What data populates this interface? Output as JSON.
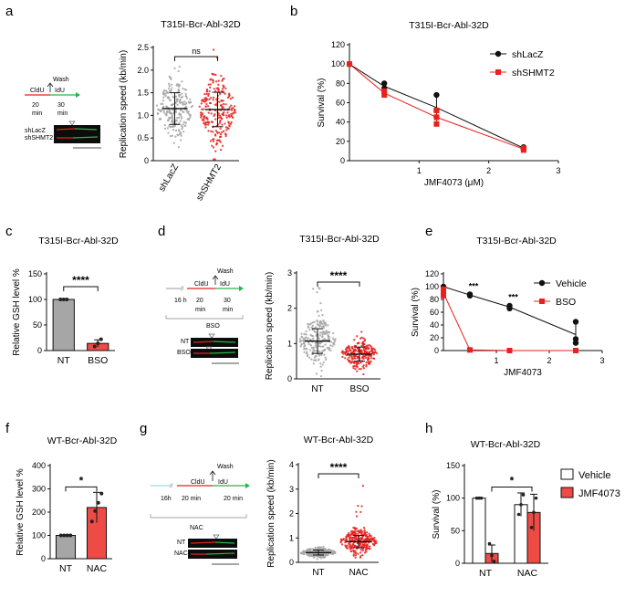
{
  "panel_letters": [
    "a",
    "b",
    "c",
    "d",
    "e",
    "f",
    "g",
    "h"
  ],
  "colors": {
    "red": "#e8211d",
    "red_fill": "#ee4a46",
    "grey": "#a6a6a6",
    "green": "#2bb34a",
    "black": "#111111"
  },
  "schematics": {
    "a": {
      "wash": "Wash",
      "cldu": "CldU",
      "idu": "IdU",
      "t1": "20",
      "t1u": "min",
      "t2": "30",
      "t2u": "min",
      "rows": [
        "shLacZ",
        "shSHMT2"
      ]
    },
    "d": {
      "wash": "Wash",
      "cldu": "CldU",
      "idu": "IdU",
      "t0": "16 h",
      "t1": "20",
      "t1u": "min",
      "t2": "30",
      "t2u": "min",
      "bracket": "BSO",
      "rows": [
        "NT",
        "BSO"
      ]
    },
    "g": {
      "wash": "Wash",
      "cldu": "CldU",
      "idu": "IdU",
      "t0": "16h",
      "t1": "20 min",
      "t2": "20 min",
      "bracket": "NAC",
      "rows": [
        "NT",
        "NAC"
      ]
    }
  },
  "chart_data": [
    {
      "id": "a",
      "type": "scatter",
      "title": "T315I-Bcr-Abl-32D",
      "ylabel": "Replication speed (kb/min)",
      "categories": [
        "shLacZ",
        "shSHMT2"
      ],
      "ylim": [
        0,
        2.5
      ],
      "yticks": [
        "0",
        "0.5",
        "1.0",
        "1.5",
        "2.0",
        "2.5"
      ],
      "means": [
        1.15,
        1.13
      ],
      "sd": [
        0.35,
        0.38
      ],
      "n": [
        230,
        230
      ],
      "colors": [
        "#a6a6a6",
        "#e8211d"
      ],
      "significance": "ns"
    },
    {
      "id": "b",
      "type": "line",
      "title": "T315I-Bcr-Abl-32D",
      "ylabel": "Survival (%)",
      "xlabel": "JMF4073 (μM)",
      "xlim": [
        0,
        3
      ],
      "ylim": [
        0,
        120
      ],
      "xticks": [
        "1",
        "2",
        "3"
      ],
      "yticks": [
        "0",
        "20",
        "40",
        "60",
        "80",
        "100",
        "120"
      ],
      "legend_position": "top-right",
      "series": [
        {
          "name": "shLacZ",
          "marker": "circle",
          "color": "#111111",
          "x": [
            0,
            0.5,
            1.25,
            2.5
          ],
          "y": [
            100,
            77,
            55,
            13
          ],
          "points": [
            [
              0,
              100
            ],
            [
              0.5,
              80
            ],
            [
              0.5,
              75
            ],
            [
              1.25,
              68
            ],
            [
              1.25,
              52
            ],
            [
              1.25,
              45
            ],
            [
              2.5,
              14
            ],
            [
              2.5,
              12
            ]
          ],
          "err": [
            0,
            3,
            11,
            1
          ]
        },
        {
          "name": "shSHMT2",
          "marker": "square",
          "color": "#e8211d",
          "x": [
            0,
            0.5,
            1.25,
            2.5
          ],
          "y": [
            100,
            70,
            45,
            12
          ],
          "points": [
            [
              0,
              100
            ],
            [
              0.5,
              72
            ],
            [
              0.5,
              68
            ],
            [
              1.25,
              52
            ],
            [
              1.25,
              45
            ],
            [
              1.25,
              38
            ],
            [
              2.5,
              13
            ],
            [
              2.5,
              11
            ]
          ],
          "err": [
            0,
            2,
            6,
            1
          ]
        }
      ]
    },
    {
      "id": "c",
      "type": "bar",
      "title": "T315I-Bcr-Abl-32D",
      "ylabel": "Relative GSH level %",
      "categories": [
        "NT",
        "BSO"
      ],
      "values": [
        100,
        14
      ],
      "err": [
        0,
        7
      ],
      "points": [
        [
          100,
          100,
          100
        ],
        [
          8,
          14,
          22
        ]
      ],
      "ylim": [
        0,
        150
      ],
      "yticks": [
        "0",
        "50",
        "100",
        "150"
      ],
      "colors": [
        "#a6a6a6",
        "#ee4a46"
      ],
      "significance": "****"
    },
    {
      "id": "d",
      "type": "scatter",
      "title": "T315I-Bcr-Abl-32D",
      "ylabel": "Replication speed (kb/min)",
      "categories": [
        "NT",
        "BSO"
      ],
      "ylim": [
        0,
        3
      ],
      "yticks": [
        "0",
        "1",
        "2",
        "3"
      ],
      "means": [
        1.07,
        0.7
      ],
      "sd": [
        0.35,
        0.2
      ],
      "n": [
        220,
        220
      ],
      "colors": [
        "#a6a6a6",
        "#e8211d"
      ],
      "significance": "****"
    },
    {
      "id": "e",
      "type": "line",
      "title": "T315I-Bcr-Abl-32D",
      "ylabel": "Survival (%)",
      "xlabel": "JMF4073",
      "xlim": [
        0,
        3
      ],
      "ylim": [
        0,
        120
      ],
      "xticks": [
        "1",
        "2",
        "3"
      ],
      "yticks": [
        "0",
        "20",
        "40",
        "60",
        "80",
        "100",
        "120"
      ],
      "legend_position": "top-right",
      "annotations": [
        {
          "x": 0.5,
          "text": "***"
        },
        {
          "x": 1.25,
          "text": "***"
        }
      ],
      "series": [
        {
          "name": "Vehicle",
          "marker": "circle",
          "color": "#111111",
          "x": [
            0,
            0.5,
            1.25,
            2.5
          ],
          "y": [
            100,
            87,
            68,
            25
          ],
          "points": [
            [
              0,
              100
            ],
            [
              0.5,
              88
            ],
            [
              0.5,
              86
            ],
            [
              1.25,
              70
            ],
            [
              1.25,
              66
            ],
            [
              2.5,
              45
            ],
            [
              2.5,
              18
            ],
            [
              2.5,
              12
            ]
          ],
          "err": [
            0,
            1,
            3,
            17
          ]
        },
        {
          "name": "BSO",
          "marker": "square",
          "color": "#e8211d",
          "x": [
            0,
            0.5,
            1.25,
            2.5
          ],
          "y": [
            90,
            1,
            0,
            0
          ],
          "points": [
            [
              0,
              96
            ],
            [
              0,
              90
            ],
            [
              0,
              86
            ],
            [
              0.5,
              1
            ],
            [
              1.25,
              0
            ],
            [
              2.5,
              0
            ]
          ],
          "err": [
            5,
            0,
            0,
            0
          ]
        }
      ]
    },
    {
      "id": "f",
      "type": "bar",
      "title": "WT-Bcr-Abl-32D",
      "ylabel": "Relative GSH level %",
      "categories": [
        "NT",
        "NAC"
      ],
      "values": [
        100,
        220
      ],
      "err": [
        0,
        65
      ],
      "points": [
        [
          100,
          100,
          100,
          100
        ],
        [
          160,
          205,
          240,
          280
        ]
      ],
      "ylim": [
        0,
        400
      ],
      "yticks": [
        "0",
        "100",
        "200",
        "300",
        "400"
      ],
      "colors": [
        "#a6a6a6",
        "#ee4a46"
      ],
      "significance": "*"
    },
    {
      "id": "g",
      "type": "scatter",
      "title": "WT-Bcr-Abl-32D",
      "ylabel": "Replication speed (kb/min)",
      "categories": [
        "NT",
        "NAC"
      ],
      "ylim": [
        0,
        4
      ],
      "yticks": [
        "0",
        "1",
        "2",
        "3",
        "4"
      ],
      "means": [
        0.4,
        0.85
      ],
      "sd": [
        0.1,
        0.25
      ],
      "n": [
        240,
        260
      ],
      "colors": [
        "#a6a6a6",
        "#e8211d"
      ],
      "significance": "****"
    },
    {
      "id": "h",
      "type": "bar",
      "title": "WT-Bcr-Abl-32D",
      "ylabel": "Survival (%)",
      "categories": [
        "NT",
        "NAC"
      ],
      "ylim": [
        0,
        150
      ],
      "yticks": [
        "0",
        "50",
        "100",
        "150"
      ],
      "legend_position": "right",
      "series": [
        {
          "name": "Vehicle",
          "color": "#ffffff",
          "values": [
            100,
            90
          ],
          "err": [
            0,
            18
          ],
          "points": [
            [
              100,
              100,
              100
            ],
            [
              75,
              90,
              105
            ]
          ]
        },
        {
          "name": "JMF4073",
          "color": "#ee4a46",
          "values": [
            15,
            78
          ],
          "err": [
            13,
            28
          ],
          "points": [
            [
              30,
              12,
              3
            ],
            [
              55,
              78,
              100
            ]
          ]
        }
      ],
      "significance": "*"
    }
  ]
}
